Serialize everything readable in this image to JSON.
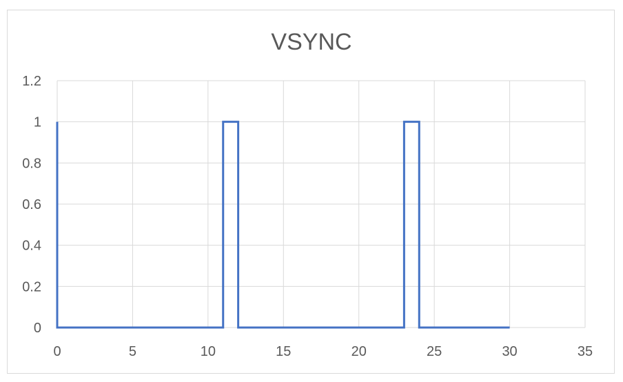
{
  "chart_data": {
    "type": "line",
    "title": "VSYNC",
    "xlabel": "",
    "ylabel": "",
    "xlim": [
      0,
      35
    ],
    "ylim": [
      0,
      1.2
    ],
    "x_ticks": [
      "0",
      "5",
      "10",
      "15",
      "20",
      "25",
      "30",
      "35"
    ],
    "y_ticks": [
      "0",
      "0.2",
      "0.4",
      "0.6",
      "0.8",
      "1",
      "1.2"
    ],
    "grid": true,
    "legend": "none",
    "series": [
      {
        "color": "#4472c4",
        "points": [
          [
            0,
            1
          ],
          [
            0,
            0
          ],
          [
            11,
            0
          ],
          [
            11,
            1
          ],
          [
            12,
            1
          ],
          [
            12,
            0
          ],
          [
            23,
            0
          ],
          [
            23,
            1
          ],
          [
            24,
            1
          ],
          [
            24,
            0
          ],
          [
            30,
            0
          ]
        ]
      }
    ]
  }
}
